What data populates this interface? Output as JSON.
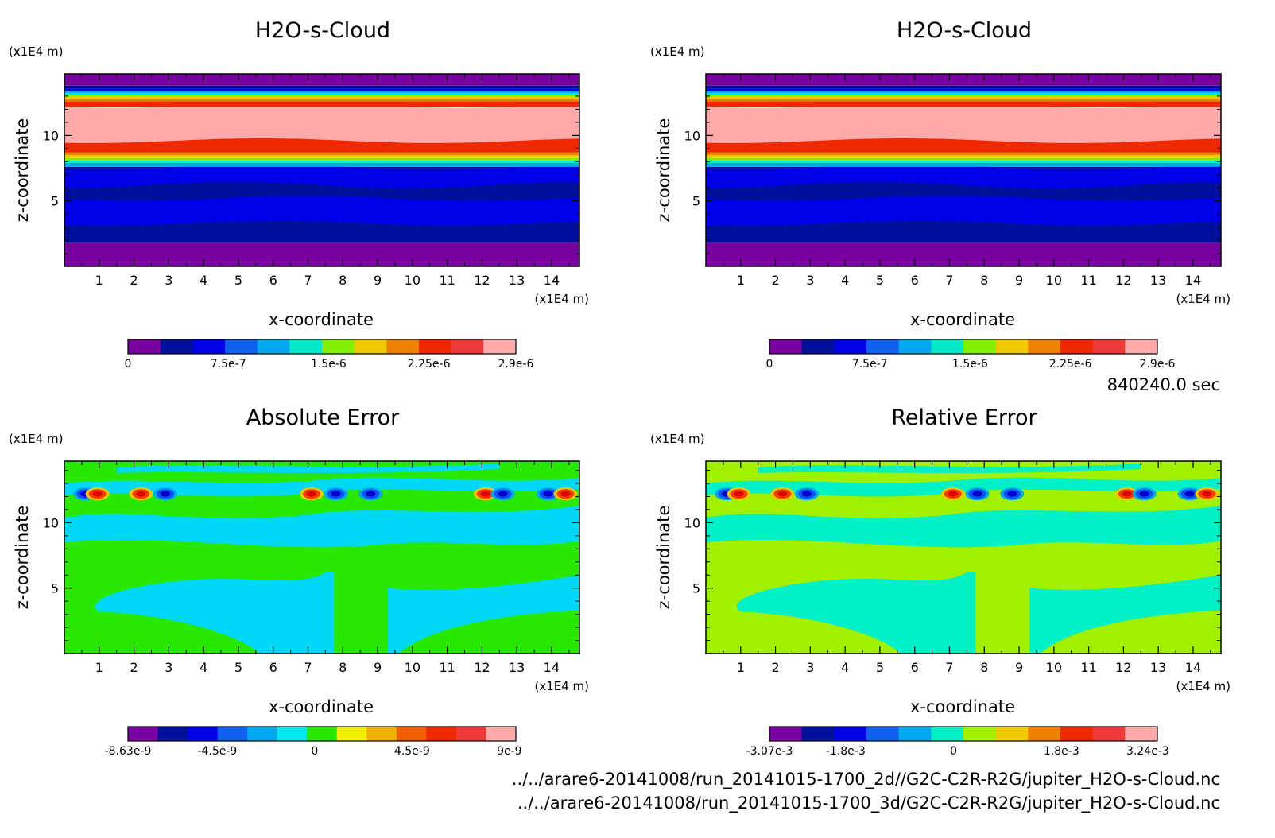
{
  "time_label": "840240.0 sec",
  "file_paths": [
    "../../arare6-20141008/run_20141015-1700_2d//G2C-C2R-R2G/jupiter_H2O-s-Cloud.nc",
    "../../arare6-20141008/run_20141015-1700_3d/G2C-C2R-R2G/jupiter_H2O-s-Cloud.nc"
  ],
  "chart_data": [
    {
      "type": "heatmap",
      "title": "H2O-s-Cloud",
      "xlabel": "x-coordinate",
      "ylabel": "z-coordinate",
      "x_unit": "(x1E4 m)",
      "z_unit": "(x1E4 m)",
      "xlim": [
        0,
        14.8
      ],
      "zlim": [
        0,
        14.7
      ],
      "x_ticks": [
        "1",
        "2",
        "3",
        "4",
        "5",
        "6",
        "7",
        "8",
        "9",
        "10",
        "11",
        "12",
        "13",
        "14"
      ],
      "z_ticks": [
        "5",
        "10"
      ],
      "pattern": "cloud",
      "colorbar": {
        "colors": [
          "#7a00a0",
          "#00109a",
          "#0000e8",
          "#1060f0",
          "#00a8f0",
          "#00e8c8",
          "#80f000",
          "#f0c800",
          "#f08000",
          "#f02800",
          "#f03a3a",
          "#ffaaaa"
        ],
        "tick_labels": [
          "0",
          "7.5e-7",
          "1.5e-6",
          "2.25e-6",
          "2.9e-6"
        ],
        "tick_values": [
          0,
          7.5e-07,
          1.5e-06,
          2.25e-06,
          2.9e-06
        ],
        "range": [
          0,
          2.9e-06
        ]
      }
    },
    {
      "type": "heatmap",
      "title": "H2O-s-Cloud",
      "xlabel": "x-coordinate",
      "ylabel": "z-coordinate",
      "x_unit": "(x1E4 m)",
      "z_unit": "(x1E4 m)",
      "xlim": [
        0,
        14.8
      ],
      "zlim": [
        0,
        14.7
      ],
      "x_ticks": [
        "1",
        "2",
        "3",
        "4",
        "5",
        "6",
        "7",
        "8",
        "9",
        "10",
        "11",
        "12",
        "13",
        "14"
      ],
      "z_ticks": [
        "5",
        "10"
      ],
      "pattern": "cloud",
      "colorbar": {
        "colors": [
          "#7a00a0",
          "#00109a",
          "#0000e8",
          "#1060f0",
          "#00a8f0",
          "#00e8c8",
          "#80f000",
          "#f0c800",
          "#f08000",
          "#f02800",
          "#f03a3a",
          "#ffaaaa"
        ],
        "tick_labels": [
          "0",
          "7.5e-7",
          "1.5e-6",
          "2.25e-6",
          "2.9e-6"
        ],
        "tick_values": [
          0,
          7.5e-07,
          1.5e-06,
          2.25e-06,
          2.9e-06
        ],
        "range": [
          0,
          2.9e-06
        ]
      }
    },
    {
      "type": "heatmap",
      "title": "Absolute Error",
      "xlabel": "x-coordinate",
      "ylabel": "z-coordinate",
      "x_unit": "(x1E4 m)",
      "z_unit": "(x1E4 m)",
      "xlim": [
        0,
        14.8
      ],
      "zlim": [
        0,
        14.7
      ],
      "x_ticks": [
        "1",
        "2",
        "3",
        "4",
        "5",
        "6",
        "7",
        "8",
        "9",
        "10",
        "11",
        "12",
        "13",
        "14"
      ],
      "z_ticks": [
        "5",
        "10"
      ],
      "pattern": "error",
      "field_colors": {
        "low": "#00d8f8",
        "high": "#28e800"
      },
      "colorbar": {
        "colors": [
          "#7a00a0",
          "#00109a",
          "#0000e8",
          "#1060f0",
          "#00a8f0",
          "#00e8f0",
          "#28e800",
          "#f0f000",
          "#f0b000",
          "#f06000",
          "#f02800",
          "#f03a3a",
          "#ffaaaa"
        ],
        "tick_labels": [
          "-8.63e-9",
          "-4.5e-9",
          "0",
          "4.5e-9",
          "9e-9"
        ],
        "tick_values": [
          -8.63e-09,
          -4.5e-09,
          0,
          4.5e-09,
          9e-09
        ],
        "range": [
          -8.63e-09,
          9.3e-09
        ]
      }
    },
    {
      "type": "heatmap",
      "title": "Relative Error",
      "xlabel": "x-coordinate",
      "ylabel": "z-coordinate",
      "x_unit": "(x1E4 m)",
      "z_unit": "(x1E4 m)",
      "xlim": [
        0,
        14.8
      ],
      "zlim": [
        0,
        14.7
      ],
      "x_ticks": [
        "1",
        "2",
        "3",
        "4",
        "5",
        "6",
        "7",
        "8",
        "9",
        "10",
        "11",
        "12",
        "13",
        "14"
      ],
      "z_ticks": [
        "5",
        "10"
      ],
      "pattern": "error",
      "field_colors": {
        "low": "#00f0c8",
        "high": "#a0f000"
      },
      "colorbar": {
        "colors": [
          "#7a00a0",
          "#00109a",
          "#0000e8",
          "#1060f0",
          "#00a8f0",
          "#00f0c8",
          "#a0f000",
          "#f0c800",
          "#f08000",
          "#f02800",
          "#f03a3a",
          "#ffaaaa"
        ],
        "tick_labels": [
          "-3.07e-3",
          "-1.8e-3",
          "0",
          "1.8e-3",
          "3.24e-3"
        ],
        "tick_values": [
          -0.00307,
          -0.0018,
          0,
          0.0018,
          0.00324
        ],
        "range": [
          -0.00307,
          0.0034
        ]
      }
    }
  ]
}
